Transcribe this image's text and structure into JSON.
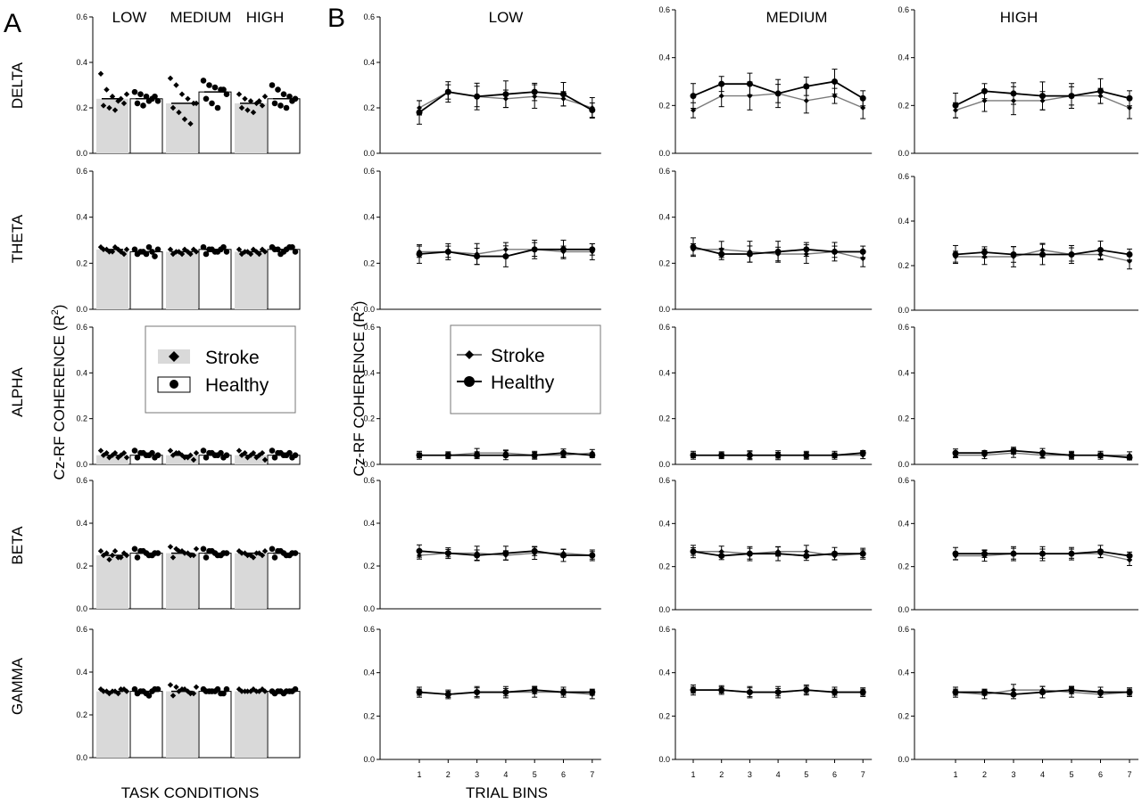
{
  "panel_labels": {
    "a": "A",
    "b": "B"
  },
  "conditions": [
    "LOW",
    "MEDIUM",
    "HIGH"
  ],
  "bands": [
    "DELTA",
    "THETA",
    "ALPHA",
    "BETA",
    "GAMMA"
  ],
  "ylabel_a": "Cz-RF  COHERENCE (R",
  "ylabel_b": "Cz-RF  COHERENCE (R",
  "ylabel_sup": "2",
  "ylabel_close": ")",
  "xlabel_a": "TASK CONDITIONS",
  "xlabel_b": "TRIAL  BINS",
  "legend": {
    "stroke": "Stroke",
    "healthy": "Healthy"
  },
  "colors": {
    "stroke_bar": "#d9d9d9",
    "healthy_bar": "#ffffff",
    "stroke_line": "#7a7a7a",
    "healthy_line": "#000000"
  },
  "chart_data": [
    {
      "type": "bar",
      "panel": "A",
      "categories": [
        "LOW",
        "MEDIUM",
        "HIGH"
      ],
      "bands": [
        "DELTA",
        "THETA",
        "ALPHA",
        "BETA",
        "GAMMA"
      ],
      "ylim": [
        0,
        0.6
      ],
      "yticks": [
        "0.0",
        "0.2",
        "0.4",
        "0.6"
      ],
      "xlabel": "TASK CONDITIONS",
      "ylabel": "Cz-RF  COHERENCE (R2)",
      "series": [
        {
          "name": "Stroke",
          "values": {
            "DELTA": [
              0.24,
              0.22,
              0.22
            ],
            "THETA": [
              0.26,
              0.25,
              0.25
            ],
            "ALPHA": [
              0.04,
              0.04,
              0.04
            ],
            "BETA": [
              0.25,
              0.26,
              0.26
            ],
            "GAMMA": [
              0.31,
              0.31,
              0.31
            ]
          },
          "points": {
            "DELTA": [
              [
                0.35,
                0.28,
                0.25,
                0.23,
                0.22,
                0.21,
                0.2,
                0.19,
                0.24,
                0.26
              ],
              [
                0.33,
                0.3,
                0.26,
                0.24,
                0.22,
                0.2,
                0.18,
                0.15,
                0.13,
                0.22
              ],
              [
                0.26,
                0.24,
                0.23,
                0.22,
                0.21,
                0.2,
                0.19,
                0.18,
                0.23,
                0.25
              ]
            ],
            "THETA": [
              [
                0.27,
                0.26,
                0.25,
                0.26,
                0.24,
                0.26,
                0.25,
                0.27,
                0.25,
                0.26
              ],
              [
                0.26,
                0.25,
                0.24,
                0.25,
                0.26,
                0.24,
                0.25,
                0.26,
                0.24,
                0.25
              ],
              [
                0.26,
                0.25,
                0.24,
                0.25,
                0.26,
                0.24,
                0.25,
                0.26,
                0.24,
                0.25
              ]
            ],
            "ALPHA": [
              [
                0.06,
                0.05,
                0.04,
                0.03,
                0.05,
                0.04,
                0.03,
                0.05,
                0.04,
                0.03
              ],
              [
                0.06,
                0.05,
                0.04,
                0.03,
                0.02,
                0.04,
                0.05,
                0.03,
                0.04,
                0.05
              ],
              [
                0.06,
                0.05,
                0.04,
                0.03,
                0.05,
                0.04,
                0.03,
                0.05,
                0.04,
                0.02
              ]
            ],
            "BETA": [
              [
                0.27,
                0.26,
                0.25,
                0.24,
                0.26,
                0.25,
                0.23,
                0.27,
                0.24,
                0.25
              ],
              [
                0.29,
                0.28,
                0.27,
                0.26,
                0.25,
                0.24,
                0.27,
                0.26,
                0.25,
                0.28
              ],
              [
                0.27,
                0.26,
                0.25,
                0.26,
                0.25,
                0.26,
                0.25,
                0.24,
                0.26,
                0.27
              ]
            ],
            "GAMMA": [
              [
                0.32,
                0.31,
                0.31,
                0.3,
                0.32,
                0.31,
                0.3,
                0.31,
                0.32,
                0.31
              ],
              [
                0.34,
                0.33,
                0.32,
                0.31,
                0.3,
                0.29,
                0.31,
                0.32,
                0.3,
                0.33
              ],
              [
                0.32,
                0.31,
                0.31,
                0.31,
                0.32,
                0.31,
                0.31,
                0.32,
                0.31,
                0.31
              ]
            ]
          }
        },
        {
          "name": "Healthy",
          "values": {
            "DELTA": [
              0.24,
              0.27,
              0.24
            ],
            "THETA": [
              0.25,
              0.26,
              0.26
            ],
            "ALPHA": [
              0.04,
              0.04,
              0.04
            ],
            "BETA": [
              0.26,
              0.26,
              0.26
            ],
            "GAMMA": [
              0.31,
              0.31,
              0.31
            ]
          },
          "points": {
            "DELTA": [
              [
                0.27,
                0.26,
                0.25,
                0.24,
                0.23,
                0.22,
                0.21,
                0.23,
                0.25
              ],
              [
                0.32,
                0.3,
                0.29,
                0.28,
                0.26,
                0.24,
                0.22,
                0.2,
                0.28
              ],
              [
                0.3,
                0.28,
                0.26,
                0.25,
                0.24,
                0.22,
                0.21,
                0.2,
                0.23
              ]
            ],
            "THETA": [
              [
                0.26,
                0.25,
                0.24,
                0.25,
                0.26,
                0.24,
                0.25,
                0.27,
                0.23
              ],
              [
                0.27,
                0.26,
                0.25,
                0.26,
                0.25,
                0.24,
                0.26,
                0.25,
                0.27
              ],
              [
                0.27,
                0.26,
                0.25,
                0.27,
                0.25,
                0.26,
                0.24,
                0.26,
                0.27
              ]
            ],
            "ALPHA": [
              [
                0.06,
                0.05,
                0.04,
                0.05,
                0.04,
                0.03,
                0.05,
                0.04,
                0.03
              ],
              [
                0.06,
                0.05,
                0.04,
                0.05,
                0.04,
                0.03,
                0.05,
                0.04,
                0.03
              ],
              [
                0.06,
                0.05,
                0.04,
                0.05,
                0.04,
                0.03,
                0.05,
                0.04,
                0.03
              ]
            ],
            "BETA": [
              [
                0.28,
                0.27,
                0.26,
                0.25,
                0.26,
                0.24,
                0.27,
                0.25,
                0.26
              ],
              [
                0.28,
                0.27,
                0.26,
                0.25,
                0.26,
                0.24,
                0.27,
                0.25,
                0.26
              ],
              [
                0.28,
                0.27,
                0.26,
                0.25,
                0.26,
                0.24,
                0.27,
                0.25,
                0.26
              ]
            ],
            "GAMMA": [
              [
                0.32,
                0.31,
                0.3,
                0.31,
                0.32,
                0.3,
                0.31,
                0.29,
                0.32
              ],
              [
                0.32,
                0.31,
                0.31,
                0.3,
                0.32,
                0.31,
                0.31,
                0.32,
                0.3
              ],
              [
                0.31,
                0.31,
                0.3,
                0.31,
                0.32,
                0.3,
                0.31,
                0.31,
                0.31
              ]
            ]
          }
        }
      ]
    },
    {
      "type": "line",
      "panel": "B",
      "x": [
        1,
        2,
        3,
        4,
        5,
        6,
        7
      ],
      "xlabel": "TRIAL  BINS",
      "ylabel": "Cz-RF  COHERENCE (R2)",
      "ylim": [
        0,
        0.6
      ],
      "yticks": [
        "0.0",
        "0.2",
        "0.4",
        "0.6"
      ],
      "conditions": [
        "LOW",
        "MEDIUM",
        "HIGH"
      ],
      "bands": [
        "DELTA",
        "THETA",
        "ALPHA",
        "BETA",
        "GAMMA"
      ],
      "series": [
        {
          "name": "Stroke",
          "values": {
            "LOW": {
              "DELTA": [
                0.2,
                0.27,
                0.25,
                0.24,
                0.25,
                0.24,
                0.2
              ],
              "THETA": [
                0.25,
                0.25,
                0.24,
                0.26,
                0.26,
                0.25,
                0.25
              ],
              "ALPHA": [
                0.04,
                0.04,
                0.05,
                0.05,
                0.04,
                0.04,
                0.05
              ],
              "BETA": [
                0.25,
                0.26,
                0.26,
                0.25,
                0.26,
                0.26,
                0.25
              ],
              "GAMMA": [
                0.31,
                0.3,
                0.31,
                0.31,
                0.31,
                0.31,
                0.3
              ]
            },
            "MEDIUM": {
              "DELTA": [
                0.18,
                0.24,
                0.24,
                0.25,
                0.22,
                0.24,
                0.19
              ],
              "THETA": [
                0.26,
                0.26,
                0.25,
                0.24,
                0.24,
                0.25,
                0.22
              ],
              "ALPHA": [
                0.04,
                0.04,
                0.04,
                0.04,
                0.04,
                0.04,
                0.04
              ],
              "BETA": [
                0.27,
                0.27,
                0.26,
                0.27,
                0.27,
                0.25,
                0.26
              ],
              "GAMMA": [
                0.32,
                0.32,
                0.31,
                0.31,
                0.32,
                0.31,
                0.31
              ]
            },
            "HIGH": {
              "DELTA": [
                0.18,
                0.22,
                0.22,
                0.22,
                0.24,
                0.24,
                0.19
              ],
              "THETA": [
                0.24,
                0.24,
                0.24,
                0.27,
                0.25,
                0.25,
                0.22
              ],
              "ALPHA": [
                0.04,
                0.04,
                0.05,
                0.04,
                0.04,
                0.04,
                0.04
              ],
              "BETA": [
                0.25,
                0.25,
                0.26,
                0.26,
                0.26,
                0.26,
                0.23
              ],
              "GAMMA": [
                0.31,
                0.3,
                0.32,
                0.32,
                0.31,
                0.3,
                0.31
              ]
            }
          }
        },
        {
          "name": "Healthy",
          "values": {
            "LOW": {
              "DELTA": [
                0.18,
                0.27,
                0.25,
                0.26,
                0.27,
                0.26,
                0.19
              ],
              "THETA": [
                0.24,
                0.25,
                0.23,
                0.23,
                0.26,
                0.26,
                0.26
              ],
              "ALPHA": [
                0.04,
                0.04,
                0.04,
                0.04,
                0.04,
                0.05,
                0.04
              ],
              "BETA": [
                0.27,
                0.26,
                0.25,
                0.26,
                0.27,
                0.25,
                0.25
              ],
              "GAMMA": [
                0.31,
                0.3,
                0.31,
                0.31,
                0.32,
                0.31,
                0.31
              ]
            },
            "MEDIUM": {
              "DELTA": [
                0.24,
                0.29,
                0.29,
                0.25,
                0.28,
                0.3,
                0.23
              ],
              "THETA": [
                0.27,
                0.24,
                0.24,
                0.25,
                0.26,
                0.25,
                0.25
              ],
              "ALPHA": [
                0.04,
                0.04,
                0.04,
                0.04,
                0.04,
                0.04,
                0.05
              ],
              "BETA": [
                0.27,
                0.25,
                0.26,
                0.26,
                0.25,
                0.26,
                0.26
              ],
              "GAMMA": [
                0.32,
                0.32,
                0.31,
                0.31,
                0.32,
                0.31,
                0.31
              ]
            },
            "HIGH": {
              "DELTA": [
                0.2,
                0.26,
                0.25,
                0.24,
                0.24,
                0.26,
                0.23
              ],
              "THETA": [
                0.25,
                0.26,
                0.25,
                0.25,
                0.25,
                0.27,
                0.25
              ],
              "ALPHA": [
                0.05,
                0.05,
                0.06,
                0.05,
                0.04,
                0.04,
                0.03
              ],
              "BETA": [
                0.26,
                0.26,
                0.26,
                0.26,
                0.26,
                0.27,
                0.25
              ],
              "GAMMA": [
                0.31,
                0.31,
                0.3,
                0.31,
                0.32,
                0.31,
                0.31
              ]
            }
          }
        }
      ],
      "error": {
        "DELTA": 0.045,
        "THETA": 0.035,
        "ALPHA": 0.015,
        "BETA": 0.025,
        "GAMMA": 0.02
      }
    }
  ]
}
